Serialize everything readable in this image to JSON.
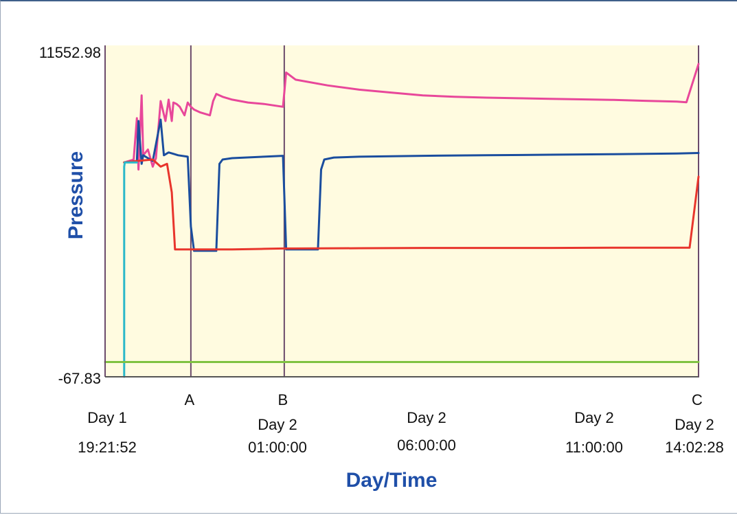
{
  "chart_data": {
    "type": "line",
    "title": "",
    "xlabel": "Day/Time",
    "ylabel": "Pressure",
    "ylim": [
      -67.83,
      11552.98
    ],
    "y_tick_labels": [
      "11552.98",
      "-67.83"
    ],
    "x_unit": "hours since Day 1 19:21:52",
    "xlim": [
      0,
      18.68
    ],
    "x_tick_labels": [
      {
        "x": 0,
        "lines": [
          "Day 1",
          "19:21:52"
        ]
      },
      {
        "x": 5.64,
        "lines": [
          "Day 2",
          "01:00:00"
        ]
      },
      {
        "x": 10.64,
        "lines": [
          "Day 2",
          "06:00:00"
        ]
      },
      {
        "x": 15.64,
        "lines": [
          "Day 2",
          "11:00:00"
        ]
      },
      {
        "x": 18.68,
        "lines": [
          "Day 2",
          "14:02:28"
        ]
      }
    ],
    "markers": [
      {
        "label": "A",
        "x": 2.7
      },
      {
        "label": "B",
        "x": 5.64
      },
      {
        "label": "C",
        "x": 18.68
      }
    ],
    "grid": false,
    "legend": "none",
    "background_color": "#fffbe0",
    "series": [
      {
        "color": "#e8479a",
        "x": [
          0.6,
          0.9,
          1.0,
          1.05,
          1.15,
          1.2,
          1.35,
          1.5,
          1.6,
          1.75,
          1.9,
          2.0,
          2.1,
          2.15,
          2.25,
          2.35,
          2.5,
          2.6,
          2.7,
          2.8,
          3.0,
          3.3,
          3.4,
          3.5,
          3.7,
          4.0,
          4.5,
          5.0,
          5.6,
          5.7,
          6.0,
          7.0,
          8.0,
          9.0,
          10.0,
          11.0,
          12.0,
          13.0,
          14.0,
          15.0,
          16.0,
          17.0,
          18.0,
          18.3,
          18.68
        ],
        "y": [
          7450,
          7550,
          9000,
          7200,
          9800,
          7700,
          7900,
          7300,
          7600,
          9600,
          8900,
          9650,
          8900,
          9550,
          9500,
          9400,
          9100,
          9550,
          9400,
          9300,
          9200,
          9100,
          9600,
          9850,
          9750,
          9650,
          9550,
          9500,
          9400,
          10600,
          10350,
          10150,
          10000,
          9900,
          9800,
          9750,
          9720,
          9700,
          9680,
          9660,
          9640,
          9610,
          9580,
          9560,
          10900
        ]
      },
      {
        "color": "#1a4d9e",
        "x": [
          0.6,
          1.0,
          1.05,
          1.15,
          1.2,
          1.35,
          1.5,
          1.75,
          1.85,
          2.0,
          2.15,
          2.3,
          2.6,
          2.7,
          2.8,
          3.1,
          3.5,
          3.6,
          3.7,
          4.0,
          5.0,
          5.6,
          5.7,
          6.0,
          6.7,
          6.8,
          6.9,
          7.2,
          8.0,
          10.0,
          12.0,
          14.0,
          16.0,
          18.0,
          18.68
        ],
        "y": [
          7450,
          7500,
          8900,
          7400,
          7700,
          7600,
          7500,
          8950,
          7700,
          7800,
          7750,
          7700,
          7650,
          5200,
          4350,
          4350,
          4350,
          7400,
          7550,
          7600,
          7650,
          7680,
          4400,
          4400,
          4400,
          7200,
          7550,
          7620,
          7650,
          7680,
          7700,
          7720,
          7740,
          7760,
          7780
        ]
      },
      {
        "color": "#e8352c",
        "x": [
          0.6,
          1.0,
          1.5,
          1.75,
          1.95,
          2.1,
          2.2,
          2.4,
          2.7,
          3.5,
          4.0,
          5.0,
          5.6,
          6.0,
          8.0,
          10.0,
          12.0,
          14.0,
          16.0,
          18.0,
          18.4,
          18.68
        ],
        "y": [
          7450,
          7500,
          7550,
          7300,
          7400,
          6400,
          4400,
          4400,
          4400,
          4400,
          4400,
          4420,
          4430,
          4430,
          4440,
          4450,
          4450,
          4450,
          4460,
          4460,
          4460,
          6950
        ]
      },
      {
        "color": "#2ab8c9",
        "x": [
          0.6,
          0.6,
          0.62,
          1.0
        ],
        "y": [
          -67.83,
          7300,
          7450,
          7450
        ]
      },
      {
        "color": "#7fc241",
        "x": [
          0,
          18.68
        ],
        "y": [
          450,
          450
        ]
      }
    ]
  }
}
